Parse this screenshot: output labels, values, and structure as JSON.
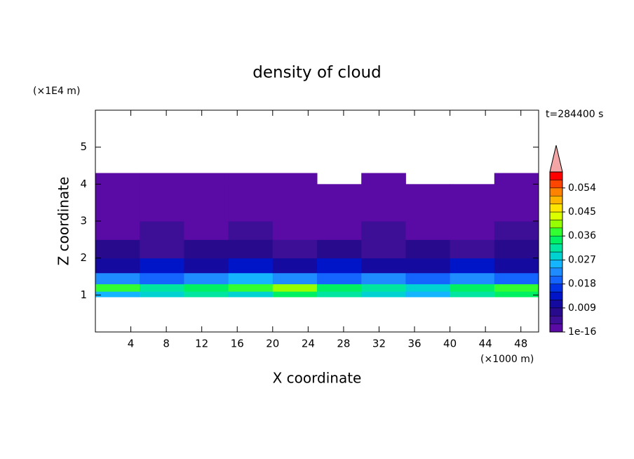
{
  "chart_data": {
    "type": "contour",
    "title": "density of cloud",
    "x_label": "X coordinate",
    "y_label": "Z coordinate",
    "x_unit": "(×1000 m)",
    "y_unit": "(×1E4 m)",
    "annotation": "t=284400 s",
    "xlim": [
      0,
      50
    ],
    "ylim": [
      0,
      6
    ],
    "xticks": [
      4,
      8,
      12,
      16,
      20,
      24,
      28,
      32,
      36,
      40,
      44,
      48
    ],
    "yticks": [
      1,
      2,
      3,
      4,
      5
    ],
    "x_edges": [
      0,
      5,
      10,
      15,
      20,
      25,
      30,
      35,
      40,
      45,
      50
    ],
    "z_edges": [
      0.95,
      1.1,
      1.3,
      1.6,
      2.0,
      2.5,
      3.0,
      3.5,
      4.0,
      4.3
    ],
    "values": [
      [
        0.024,
        0.027,
        0.03,
        0.027,
        0.033,
        0.03,
        0.027,
        0.024,
        0.03,
        0.033
      ],
      [
        0.036,
        0.03,
        0.033,
        0.036,
        0.039,
        0.033,
        0.03,
        0.027,
        0.033,
        0.036
      ],
      [
        0.021,
        0.018,
        0.021,
        0.024,
        0.021,
        0.018,
        0.021,
        0.018,
        0.021,
        0.018
      ],
      [
        0.009,
        0.012,
        0.009,
        0.012,
        0.009,
        0.012,
        0.009,
        0.009,
        0.012,
        0.009
      ],
      [
        0.0065,
        0.0045,
        0.0065,
        0.0065,
        0.0045,
        0.0065,
        0.0045,
        0.0065,
        0.0045,
        0.0065
      ],
      [
        0.002,
        0.0035,
        0.002,
        0.0045,
        0.002,
        0.002,
        0.0035,
        0.002,
        0.002,
        0.0035
      ],
      [
        0.001,
        0.001,
        0.001,
        0.001,
        0.001,
        0.001,
        0.001,
        0.001,
        0.001,
        0.001
      ],
      [
        0.001,
        0.001,
        0.001,
        0.001,
        0.001,
        0.001,
        0.001,
        0.001,
        0.001,
        0.001
      ],
      [
        0.001,
        0.001,
        0.001,
        0.001,
        0.001,
        null,
        0.001,
        null,
        null,
        0.001
      ]
    ],
    "colorbar": {
      "levels": [
        1e-16,
        0.003,
        0.006,
        0.009,
        0.012,
        0.015,
        0.018,
        0.021,
        0.024,
        0.027,
        0.03,
        0.033,
        0.036,
        0.039,
        0.042,
        0.045,
        0.048,
        0.051,
        0.054,
        0.057,
        0.06
      ],
      "colors": [
        "#5a0aa5",
        "#3c0f96",
        "#280a8c",
        "#140aa0",
        "#0014c8",
        "#0032e6",
        "#1464ff",
        "#1e8cff",
        "#14b4ff",
        "#00d2d2",
        "#00e6a0",
        "#00f064",
        "#32ff32",
        "#96ff00",
        "#dcff00",
        "#ffe600",
        "#ffb400",
        "#ff8200",
        "#ff4600",
        "#ff0000"
      ],
      "ticks": [
        1e-16,
        0.009,
        0.018,
        0.027,
        0.036,
        0.045,
        0.054
      ],
      "extend_color": "#f4a6a6"
    }
  }
}
